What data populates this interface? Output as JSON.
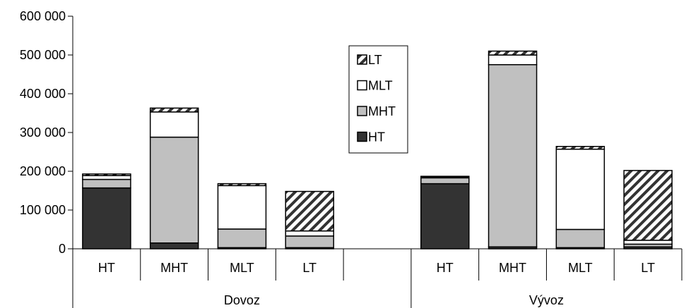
{
  "chart_data": {
    "type": "bar",
    "stacked": true,
    "groups": [
      {
        "name": "Dovoz",
        "categories": [
          "HT",
          "MHT",
          "MLT",
          "LT",
          ""
        ]
      },
      {
        "name": "Vývoz",
        "categories": [
          "HT",
          "MHT",
          "MLT",
          "LT"
        ]
      }
    ],
    "categories": [
      "HT",
      "MHT",
      "MLT",
      "LT",
      "",
      "HT",
      "MHT",
      "MLT",
      "LT"
    ],
    "series": [
      {
        "name": "HT",
        "fill": "#333333",
        "pattern": "solid",
        "values": [
          157000,
          15000,
          3000,
          3000,
          null,
          168000,
          5000,
          3000,
          5000
        ]
      },
      {
        "name": "MHT",
        "fill": "#c0c0c0",
        "pattern": "solid",
        "values": [
          22000,
          273000,
          48000,
          30000,
          null,
          15000,
          470000,
          47000,
          7000
        ]
      },
      {
        "name": "MLT",
        "fill": "#ffffff",
        "pattern": "solid",
        "values": [
          10000,
          65000,
          112000,
          13000,
          null,
          2000,
          25000,
          207000,
          10000
        ]
      },
      {
        "name": "LT",
        "fill": "#ffffff",
        "pattern": "diagonal-hatch",
        "values": [
          4000,
          10000,
          5000,
          102000,
          null,
          2000,
          10000,
          7000,
          180000
        ]
      }
    ],
    "ylim": [
      0,
      600000
    ],
    "yticks": [
      0,
      100000,
      200000,
      300000,
      400000,
      500000,
      600000
    ],
    "ytick_labels": [
      "0",
      "100 000",
      "200 000",
      "300 000",
      "400 000",
      "500 000",
      "600 000"
    ],
    "legend_order": [
      "LT",
      "MLT",
      "MHT",
      "HT"
    ],
    "legend_position": "top-center",
    "grid": false
  }
}
